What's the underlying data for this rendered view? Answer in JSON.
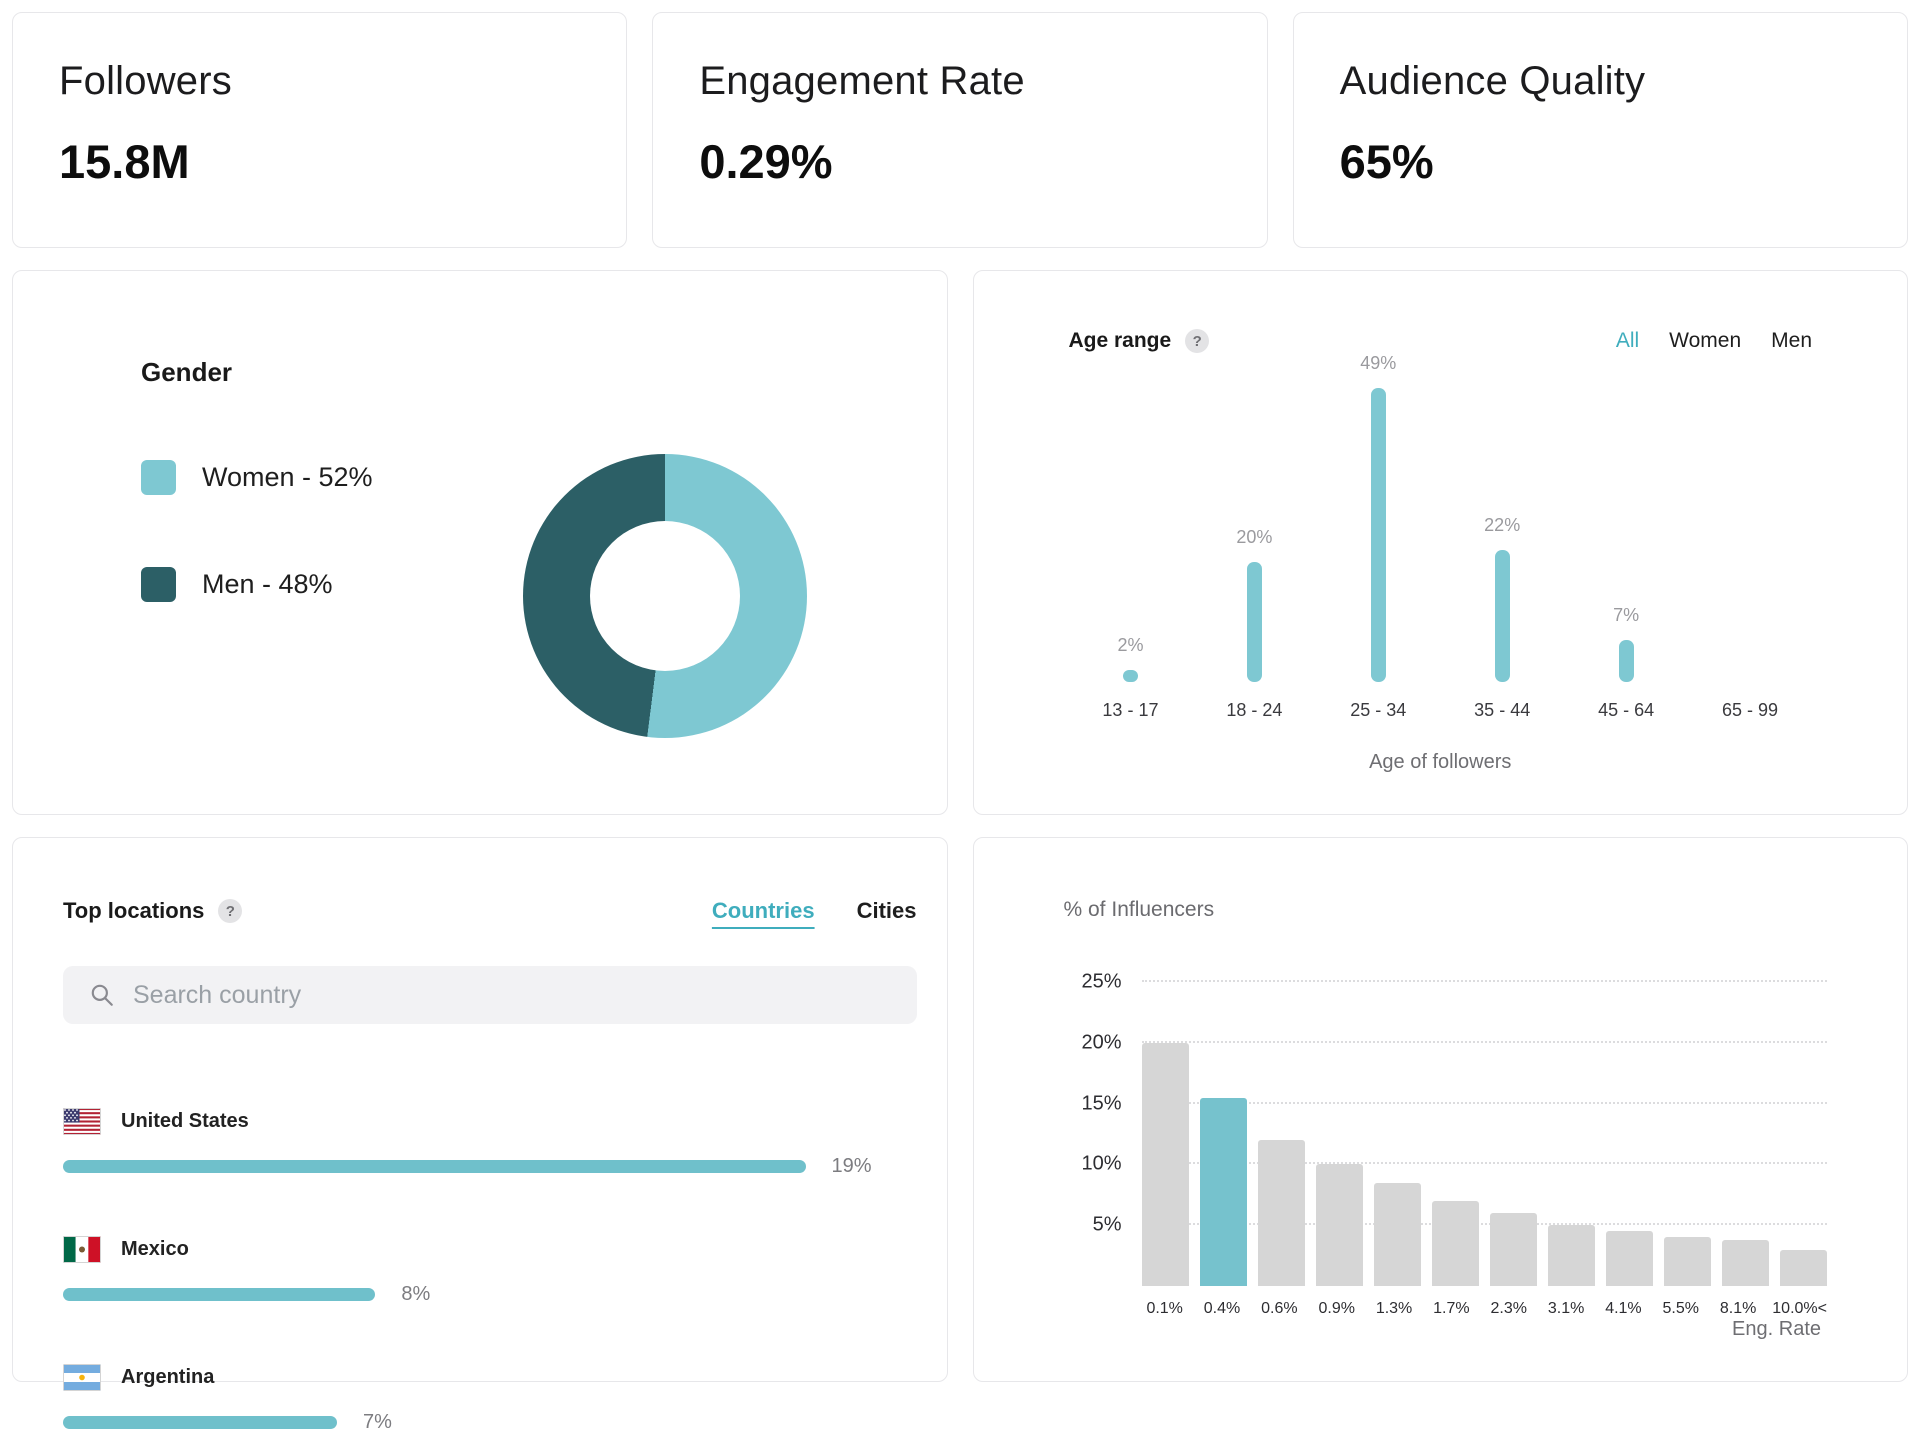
{
  "colors": {
    "teal_light": "#7EC8D2",
    "teal_dark": "#2C5F66",
    "teal_bar": "#6FC0CB",
    "gray_bar": "#D6D6D6",
    "accent_tab": "#3FADBD"
  },
  "stats": [
    {
      "label": "Followers",
      "value": "15.8M"
    },
    {
      "label": "Engagement Rate",
      "value": "0.29%"
    },
    {
      "label": "Audience Quality",
      "value": "65%"
    }
  ],
  "gender": {
    "title": "Gender",
    "legend": [
      {
        "label": "Women - 52%"
      },
      {
        "label": "Men - 48%"
      }
    ]
  },
  "age_range": {
    "title": "Age range",
    "tabs": [
      "All",
      "Women",
      "Men"
    ],
    "active_tab": "All",
    "xlabel": "Age of followers"
  },
  "top_locations": {
    "title": "Top locations",
    "tabs": [
      "Countries",
      "Cities"
    ],
    "active_tab": "Countries",
    "search_placeholder": "Search country",
    "items": [
      {
        "name": "United States",
        "pct": 19,
        "pct_label": "19%",
        "flag": "us"
      },
      {
        "name": "Mexico",
        "pct": 8,
        "pct_label": "8%",
        "flag": "mx"
      },
      {
        "name": "Argentina",
        "pct": 7,
        "pct_label": "7%",
        "flag": "ar"
      }
    ]
  },
  "influencers": {
    "title": "% of Influencers",
    "xlabel": "Eng. Rate"
  },
  "chart_data": [
    {
      "id": "gender_donut",
      "type": "pie",
      "title": "Gender",
      "labels": [
        "Women",
        "Men"
      ],
      "values": [
        52,
        48
      ],
      "colors": [
        "#7EC8D2",
        "#2C5F66"
      ],
      "donut": true,
      "legend_position": "left"
    },
    {
      "id": "age_range",
      "type": "bar",
      "title": "Age range",
      "categories": [
        "13 - 17",
        "18 - 24",
        "25 - 34",
        "35 - 44",
        "45 - 64",
        "65 - 99"
      ],
      "values": [
        2,
        20,
        49,
        22,
        7,
        0
      ],
      "value_labels": [
        "2%",
        "20%",
        "49%",
        "22%",
        "7%",
        ""
      ],
      "xlabel": "Age of followers",
      "ylim": [
        0,
        49
      ],
      "bar_color": "#7EC8D2",
      "grid": "off"
    },
    {
      "id": "top_locations",
      "type": "bar",
      "orientation": "horizontal",
      "categories": [
        "United States",
        "Mexico",
        "Argentina"
      ],
      "values": [
        19,
        8,
        7
      ],
      "value_labels": [
        "19%",
        "8%",
        "7%"
      ],
      "bar_color": "#6FC0CB"
    },
    {
      "id": "influencers_by_eng_rate",
      "type": "bar",
      "title": "% of Influencers",
      "categories": [
        "0.1%",
        "0.4%",
        "0.6%",
        "0.9%",
        "1.3%",
        "1.7%",
        "2.3%",
        "3.1%",
        "4.1%",
        "5.5%",
        "8.1%",
        "10.0%<"
      ],
      "values": [
        20,
        15.5,
        12,
        10,
        8.5,
        7,
        6,
        5,
        4.5,
        4,
        3.8,
        3
      ],
      "xlabel": "Eng. Rate",
      "ylim": [
        0,
        25
      ],
      "yticks": [
        5,
        10,
        15,
        20,
        25
      ],
      "highlight_index": 1,
      "bar_color": "#D6D6D6",
      "highlight_color": "#76C2CD",
      "grid": "dotted"
    }
  ]
}
